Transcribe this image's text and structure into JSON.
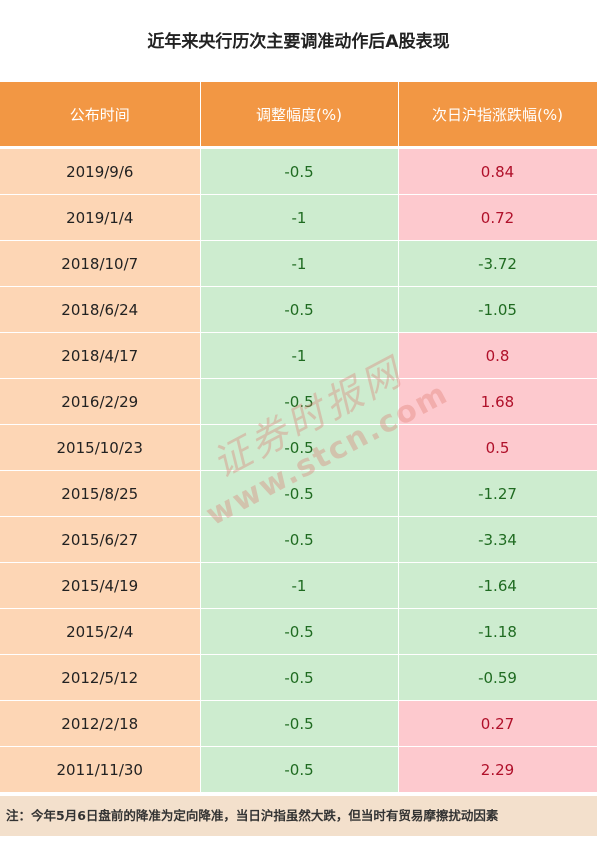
{
  "title": "近年来央行历次主要调准动作后A股表现",
  "columns": [
    "公布时间",
    "调整幅度(%)",
    "次日沪指涨跌幅(%)"
  ],
  "rows": [
    {
      "date": "2019/9/6",
      "adj": "-0.5",
      "chg": "0.84",
      "trend": "up"
    },
    {
      "date": "2019/1/4",
      "adj": "-1",
      "chg": "0.72",
      "trend": "up"
    },
    {
      "date": "2018/10/7",
      "adj": "-1",
      "chg": "-3.72",
      "trend": "down"
    },
    {
      "date": "2018/6/24",
      "adj": "-0.5",
      "chg": "-1.05",
      "trend": "down"
    },
    {
      "date": "2018/4/17",
      "adj": "-1",
      "chg": "0.8",
      "trend": "up"
    },
    {
      "date": "2016/2/29",
      "adj": "-0.5",
      "chg": "1.68",
      "trend": "up"
    },
    {
      "date": "2015/10/23",
      "adj": "-0.5",
      "chg": "0.5",
      "trend": "up"
    },
    {
      "date": "2015/8/25",
      "adj": "-0.5",
      "chg": "-1.27",
      "trend": "down"
    },
    {
      "date": "2015/6/27",
      "adj": "-0.5",
      "chg": "-3.34",
      "trend": "down"
    },
    {
      "date": "2015/4/19",
      "adj": "-1",
      "chg": "-1.64",
      "trend": "down"
    },
    {
      "date": "2015/2/4",
      "adj": "-0.5",
      "chg": "-1.18",
      "trend": "down"
    },
    {
      "date": "2012/5/12",
      "adj": "-0.5",
      "chg": "-0.59",
      "trend": "down"
    },
    {
      "date": "2012/2/18",
      "adj": "-0.5",
      "chg": "0.27",
      "trend": "up"
    },
    {
      "date": "2011/11/30",
      "adj": "-0.5",
      "chg": "2.29",
      "trend": "up"
    }
  ],
  "note": "注：今年5月6日盘前的降准为定向降准，当日沪指虽然大跌，但当时有贸易摩擦扰动因素",
  "watermark": {
    "cn": "证券时报网",
    "url": "www.stcn.com"
  },
  "colors": {
    "header_bg": "#f29744",
    "date_bg": "#fdd6b5",
    "green_bg": "#cdeccf",
    "pink_bg": "#fdc9ce",
    "green_text": "#1f6b21",
    "red_text": "#b0102a",
    "note_bg": "#f3e0cc"
  }
}
